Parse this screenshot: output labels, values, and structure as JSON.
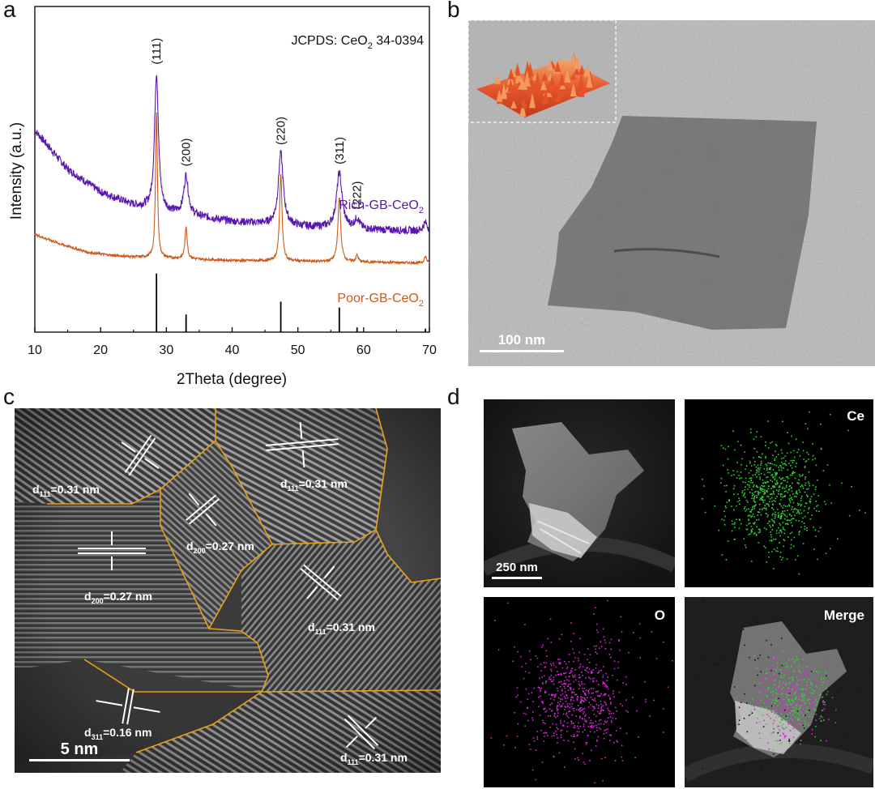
{
  "panels": {
    "a": "a",
    "b": "b",
    "c": "c",
    "d": "d"
  },
  "colors": {
    "rich": "#5a16b0",
    "poor": "#cc5a1c",
    "reference": "#000000",
    "grain_boundary": "#e8a21a",
    "ce_map": "#2ed62e",
    "o_map": "#d42ad4"
  },
  "chart_data": {
    "type": "line",
    "xlabel": "2Theta (degree)",
    "ylabel": "Intensity (a.u.)",
    "xlim": [
      10,
      70
    ],
    "xticks": [
      10,
      20,
      30,
      40,
      50,
      60,
      70
    ],
    "yticks": [],
    "grid": false,
    "reference": {
      "label_prefix": "JCPDS: CeO",
      "label_sub": "2",
      "label_suffix": " 34-0394",
      "peaks": [
        {
          "x": 28.5,
          "rel": 1.0
        },
        {
          "x": 33.0,
          "rel": 0.3
        },
        {
          "x": 47.4,
          "rel": 0.52
        },
        {
          "x": 56.3,
          "rel": 0.42
        },
        {
          "x": 59.0,
          "rel": 0.08
        },
        {
          "x": 69.4,
          "rel": 0.06
        }
      ]
    },
    "peak_labels": [
      {
        "text": "(111)",
        "x": 28.5
      },
      {
        "text": "(200)",
        "x": 33.0
      },
      {
        "text": "(220)",
        "x": 47.4
      },
      {
        "text": "(311)",
        "x": 56.3
      },
      {
        "text": "(222)",
        "x": 59.0
      }
    ],
    "series": [
      {
        "name_main": "Rich-GB-CeO",
        "name_sub": "2",
        "baseline": [
          [
            10,
            0.62
          ],
          [
            15,
            0.5
          ],
          [
            20,
            0.43
          ],
          [
            25,
            0.39
          ],
          [
            30,
            0.37
          ],
          [
            40,
            0.34
          ],
          [
            50,
            0.325
          ],
          [
            60,
            0.315
          ],
          [
            70,
            0.31
          ]
        ],
        "peaks": [
          {
            "x": 28.5,
            "h": 0.42,
            "w": 0.35
          },
          {
            "x": 33.0,
            "h": 0.12,
            "w": 0.4
          },
          {
            "x": 47.4,
            "h": 0.22,
            "w": 0.45
          },
          {
            "x": 56.3,
            "h": 0.17,
            "w": 0.5
          },
          {
            "x": 59.0,
            "h": 0.03,
            "w": 0.45
          },
          {
            "x": 69.4,
            "h": 0.025,
            "w": 0.4
          }
        ]
      },
      {
        "name_main": "Poor-GB-CeO",
        "name_sub": "2",
        "baseline": [
          [
            10,
            0.3
          ],
          [
            14,
            0.27
          ],
          [
            18,
            0.245
          ],
          [
            22,
            0.235
          ],
          [
            26,
            0.23
          ],
          [
            40,
            0.22
          ],
          [
            60,
            0.215
          ],
          [
            70,
            0.212
          ]
        ],
        "peaks": [
          {
            "x": 28.5,
            "h": 0.45,
            "w": 0.17
          },
          {
            "x": 33.0,
            "h": 0.1,
            "w": 0.2
          },
          {
            "x": 47.4,
            "h": 0.27,
            "w": 0.22
          },
          {
            "x": 56.3,
            "h": 0.2,
            "w": 0.25
          },
          {
            "x": 59.0,
            "h": 0.02,
            "w": 0.22
          },
          {
            "x": 69.4,
            "h": 0.02,
            "w": 0.22
          }
        ]
      }
    ]
  },
  "tem": {
    "scale_bar": "100 nm"
  },
  "hrtem": {
    "scale_bar": "5 nm",
    "annotations": [
      {
        "letter": "d",
        "sub": "111",
        "value": "=0.31 nm"
      },
      {
        "letter": "d",
        "sub": "111",
        "value": "=0.31 nm"
      },
      {
        "letter": "d",
        "sub": "200",
        "value": "=0.27 nm"
      },
      {
        "letter": "d",
        "sub": "200",
        "value": "=0.27 nm"
      },
      {
        "letter": "d",
        "sub": "111",
        "value": "=0.31 nm"
      },
      {
        "letter": "d",
        "sub": "311",
        "value": "=0.16 nm"
      },
      {
        "letter": "d",
        "sub": "111",
        "value": "=0.31 nm"
      }
    ]
  },
  "eds": {
    "scale_bar": "250 nm",
    "ce_label": "Ce",
    "o_label": "O",
    "merge_label": "Merge"
  }
}
